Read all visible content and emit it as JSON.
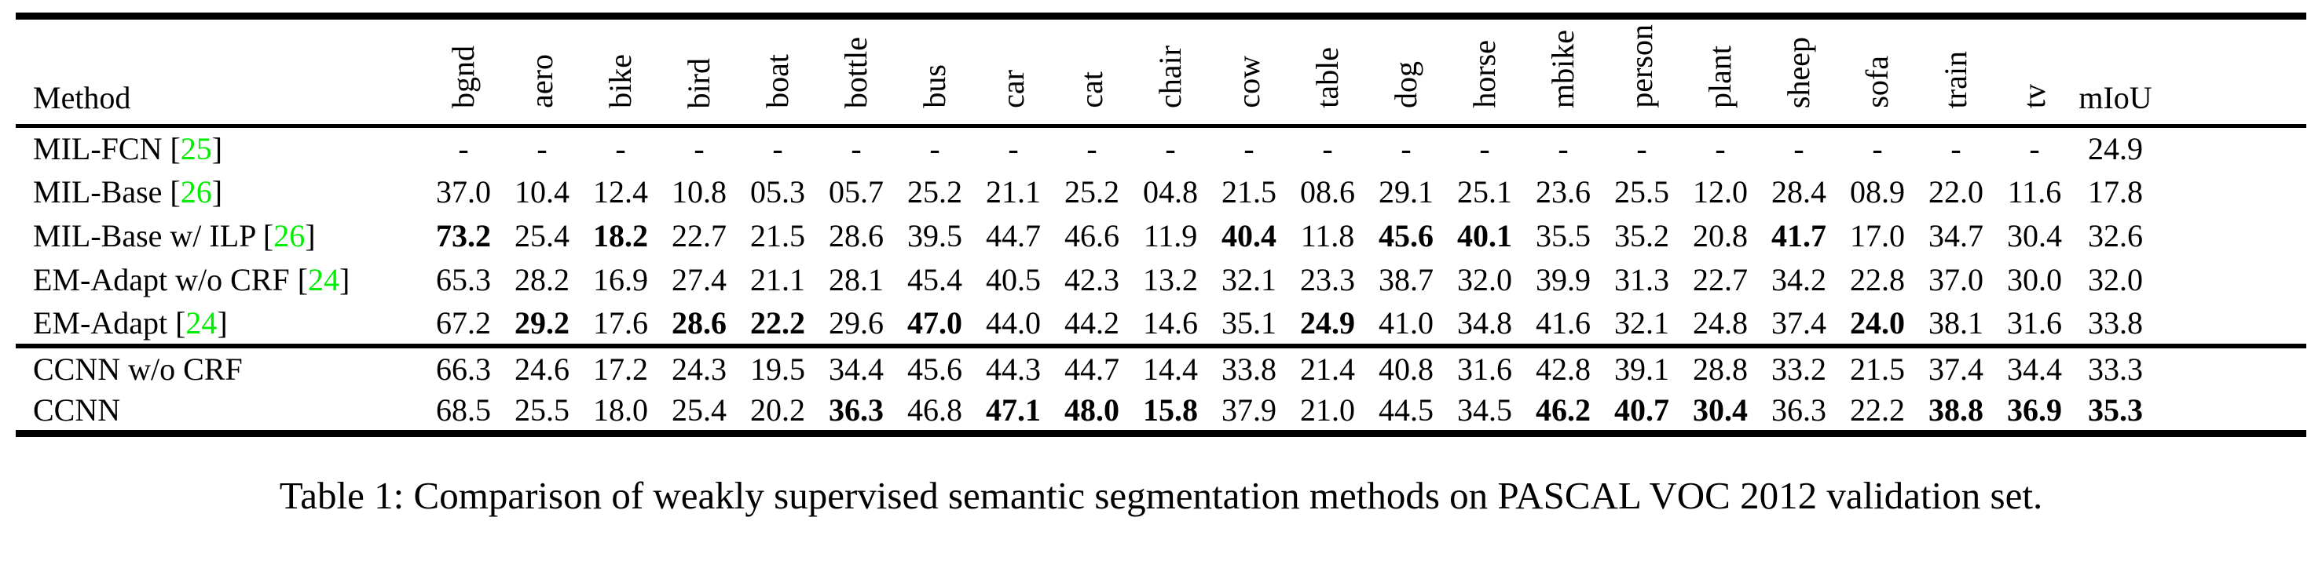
{
  "colors": {
    "citation_green": "#00ee00"
  },
  "caption": "Table 1: Comparison of weakly supervised semantic segmentation methods on PASCAL VOC 2012 validation set.",
  "table": {
    "method_header": "Method",
    "miou_header": "mIoU",
    "cite_open": " [",
    "cite_close": "]",
    "class_columns": [
      "bgnd",
      "aero",
      "bike",
      "bird",
      "boat",
      "bottle",
      "bus",
      "car",
      "cat",
      "chair",
      "cow",
      "table",
      "dog",
      "horse",
      "mbike",
      "person",
      "plant",
      "sheep",
      "sofa",
      "train",
      "tv"
    ],
    "sections": [
      {
        "rows": [
          {
            "label": "MIL-FCN",
            "cite": "25",
            "values": [
              "-",
              "-",
              "-",
              "-",
              "-",
              "-",
              "-",
              "-",
              "-",
              "-",
              "-",
              "-",
              "-",
              "-",
              "-",
              "-",
              "-",
              "-",
              "-",
              "-",
              "-",
              "24.9"
            ],
            "bold": []
          },
          {
            "label": "MIL-Base",
            "cite": "26",
            "values": [
              "37.0",
              "10.4",
              "12.4",
              "10.8",
              "05.3",
              "05.7",
              "25.2",
              "21.1",
              "25.2",
              "04.8",
              "21.5",
              "08.6",
              "29.1",
              "25.1",
              "23.6",
              "25.5",
              "12.0",
              "28.4",
              "08.9",
              "22.0",
              "11.6",
              "17.8"
            ],
            "bold": []
          },
          {
            "label": "MIL-Base w/ ILP",
            "cite": "26",
            "values": [
              "73.2",
              "25.4",
              "18.2",
              "22.7",
              "21.5",
              "28.6",
              "39.5",
              "44.7",
              "46.6",
              "11.9",
              "40.4",
              "11.8",
              "45.6",
              "40.1",
              "35.5",
              "35.2",
              "20.8",
              "41.7",
              "17.0",
              "34.7",
              "30.4",
              "32.6"
            ],
            "bold": [
              0,
              2,
              10,
              12,
              13,
              17
            ]
          },
          {
            "label": "EM-Adapt w/o CRF",
            "cite": "24",
            "values": [
              "65.3",
              "28.2",
              "16.9",
              "27.4",
              "21.1",
              "28.1",
              "45.4",
              "40.5",
              "42.3",
              "13.2",
              "32.1",
              "23.3",
              "38.7",
              "32.0",
              "39.9",
              "31.3",
              "22.7",
              "34.2",
              "22.8",
              "37.0",
              "30.0",
              "32.0"
            ],
            "bold": []
          },
          {
            "label": "EM-Adapt",
            "cite": "24",
            "values": [
              "67.2",
              "29.2",
              "17.6",
              "28.6",
              "22.2",
              "29.6",
              "47.0",
              "44.0",
              "44.2",
              "14.6",
              "35.1",
              "24.9",
              "41.0",
              "34.8",
              "41.6",
              "32.1",
              "24.8",
              "37.4",
              "24.0",
              "38.1",
              "31.6",
              "33.8"
            ],
            "bold": [
              1,
              3,
              4,
              6,
              11,
              18
            ]
          }
        ]
      },
      {
        "rows": [
          {
            "label": "CCNN w/o CRF",
            "cite": null,
            "values": [
              "66.3",
              "24.6",
              "17.2",
              "24.3",
              "19.5",
              "34.4",
              "45.6",
              "44.3",
              "44.7",
              "14.4",
              "33.8",
              "21.4",
              "40.8",
              "31.6",
              "42.8",
              "39.1",
              "28.8",
              "33.2",
              "21.5",
              "37.4",
              "34.4",
              "33.3"
            ],
            "bold": []
          },
          {
            "label": "CCNN",
            "cite": null,
            "values": [
              "68.5",
              "25.5",
              "18.0",
              "25.4",
              "20.2",
              "36.3",
              "46.8",
              "47.1",
              "48.0",
              "15.8",
              "37.9",
              "21.0",
              "44.5",
              "34.5",
              "46.2",
              "40.7",
              "30.4",
              "36.3",
              "22.2",
              "38.8",
              "36.9",
              "35.3"
            ],
            "bold": [
              5,
              7,
              8,
              9,
              14,
              15,
              16,
              19,
              20,
              21
            ]
          }
        ]
      }
    ]
  }
}
